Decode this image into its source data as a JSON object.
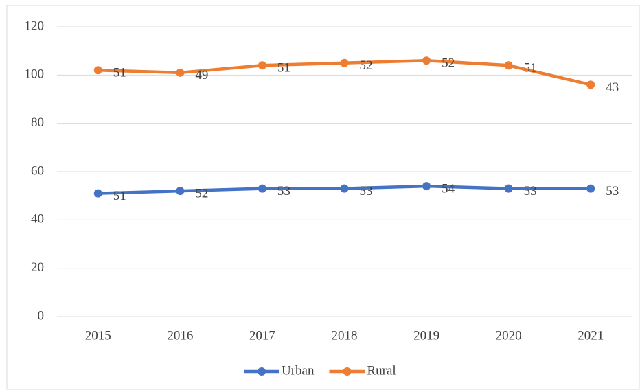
{
  "chart_data": {
    "type": "line",
    "stacked": true,
    "categories": [
      "2015",
      "2016",
      "2017",
      "2018",
      "2019",
      "2020",
      "2021"
    ],
    "series": [
      {
        "name": "Urban",
        "color": "#4472c4",
        "values": [
          51,
          52,
          53,
          53,
          54,
          53,
          53
        ]
      },
      {
        "name": "Rural",
        "color": "#ed7d31",
        "values": [
          51,
          49,
          51,
          52,
          52,
          51,
          43
        ]
      }
    ],
    "ylim": [
      0,
      120
    ],
    "yticks": [
      0,
      20,
      40,
      60,
      80,
      100,
      120
    ],
    "grid": true,
    "legend": "bottom"
  }
}
